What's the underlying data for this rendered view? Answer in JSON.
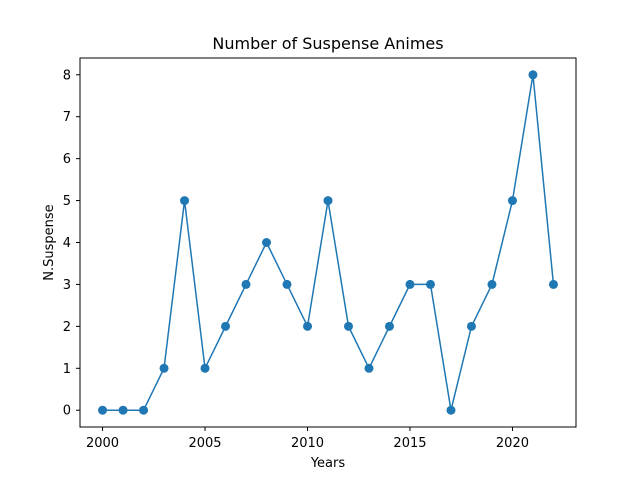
{
  "chart_data": {
    "type": "line",
    "title": "Number of Suspense Animes",
    "xlabel": "Years",
    "ylabel": "N.Suspense",
    "x": [
      2000,
      2001,
      2002,
      2003,
      2004,
      2005,
      2006,
      2007,
      2008,
      2009,
      2010,
      2011,
      2012,
      2013,
      2014,
      2015,
      2016,
      2017,
      2018,
      2019,
      2020,
      2021,
      2022
    ],
    "series": [
      {
        "values": [
          0,
          0,
          0,
          1,
          5,
          1,
          2,
          3,
          4,
          3,
          2,
          5,
          2,
          1,
          2,
          3,
          3,
          0,
          2,
          3,
          5,
          8,
          3
        ],
        "color": "#1f77b4",
        "marker": "circle"
      }
    ],
    "xlim": [
      1998.9,
      2023.1
    ],
    "ylim": [
      -0.4,
      8.4
    ],
    "xticks": [
      2000,
      2005,
      2010,
      2015,
      2020
    ],
    "yticks": [
      0,
      1,
      2,
      3,
      4,
      5,
      6,
      7,
      8
    ],
    "grid": false
  }
}
